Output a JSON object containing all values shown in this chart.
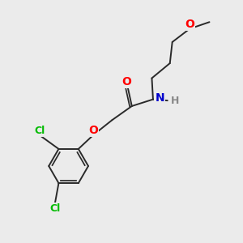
{
  "background_color": "#ebebeb",
  "bond_color": "#2a2a2a",
  "atom_colors": {
    "O": "#ff0000",
    "N": "#0000cc",
    "Cl": "#00bb00",
    "H": "#888888",
    "C": "#2a2a2a"
  },
  "font_size": 8.5,
  "lw": 1.4
}
